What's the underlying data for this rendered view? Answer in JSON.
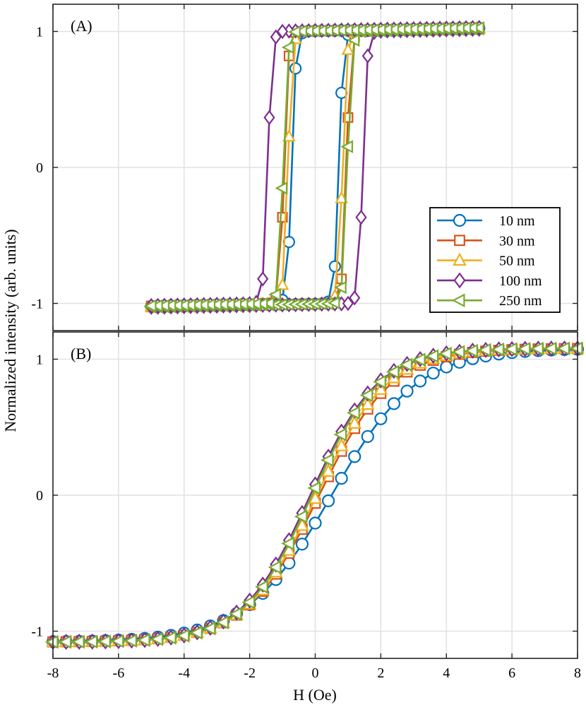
{
  "chart_data": [
    {
      "type": "line",
      "panel_label": "(A)",
      "xlim": [
        -8,
        8
      ],
      "ylim": [
        -1.2,
        1.2
      ],
      "x_ticks": [
        -8,
        -6,
        -4,
        -2,
        0,
        2,
        4,
        6,
        8
      ],
      "y_ticks": [
        -1,
        0,
        1
      ],
      "y_tick_labels": [
        "-1",
        "0",
        "1"
      ],
      "grid": true,
      "legend_position": "right",
      "series": [
        {
          "name": "10 nm",
          "color": "#0072BD",
          "marker": "circle",
          "hc": 0.72,
          "xmin": -5.0,
          "xmax": 5.0,
          "step": 0.2
        },
        {
          "name": "30 nm",
          "color": "#D95319",
          "marker": "square",
          "hc": 0.95,
          "xmin": -5.0,
          "xmax": 5.0,
          "step": 0.2
        },
        {
          "name": "50 nm",
          "color": "#EDB120",
          "marker": "triangle-up",
          "hc": 0.83,
          "xmin": -5.0,
          "xmax": 5.0,
          "step": 0.2
        },
        {
          "name": "100 nm",
          "color": "#7E2F8E",
          "marker": "diamond",
          "hc": 1.45,
          "xmin": -5.0,
          "xmax": 5.0,
          "step": 0.2
        },
        {
          "name": "250 nm",
          "color": "#77AC30",
          "marker": "triangle-left",
          "hc": 0.98,
          "xmin": -5.0,
          "xmax": 5.0,
          "step": 0.2
        }
      ]
    },
    {
      "type": "line",
      "panel_label": "(B)",
      "xlabel": "H (Oe)",
      "xlim": [
        -8,
        8
      ],
      "ylim": [
        -1.2,
        1.2
      ],
      "x_ticks": [
        -8,
        -6,
        -4,
        -2,
        0,
        2,
        4,
        6,
        8
      ],
      "x_tick_labels": [
        "-8",
        "-6",
        "-4",
        "-2",
        "0",
        "2",
        "4",
        "6",
        "8"
      ],
      "y_ticks": [
        -1,
        0,
        1
      ],
      "y_tick_labels": [
        "-1",
        "0",
        "1"
      ],
      "grid": true,
      "series": [
        {
          "name": "10 nm",
          "color": "#0072BD",
          "marker": "circle",
          "x0": 0.5,
          "width": 2.6,
          "sat": 1.08,
          "xmin": -8,
          "xmax": 8,
          "step": 0.4
        },
        {
          "name": "30 nm",
          "color": "#D95319",
          "marker": "square",
          "x0": 0.12,
          "width": 2.2,
          "sat": 1.08,
          "xmin": -8,
          "xmax": 8,
          "step": 0.4
        },
        {
          "name": "50 nm",
          "color": "#EDB120",
          "marker": "triangle-up",
          "x0": 0.05,
          "width": 2.15,
          "sat": 1.08,
          "xmin": -8,
          "xmax": 8,
          "step": 0.4
        },
        {
          "name": "100 nm",
          "color": "#7E2F8E",
          "marker": "diamond",
          "x0": -0.15,
          "width": 2.05,
          "sat": 1.08,
          "xmin": -8,
          "xmax": 8,
          "step": 0.4
        },
        {
          "name": "250 nm",
          "color": "#77AC30",
          "marker": "triangle-left",
          "x0": -0.1,
          "width": 2.05,
          "sat": 1.08,
          "xmin": -8,
          "xmax": 8,
          "step": 0.4
        }
      ]
    }
  ],
  "shared_ylabel": "Normalized intensity (arb. units)",
  "legend_entries": [
    "10 nm",
    "30 nm",
    "50 nm",
    "100 nm",
    "250 nm"
  ]
}
